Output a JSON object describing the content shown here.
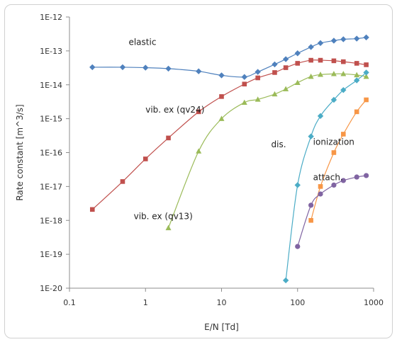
{
  "chart_data": {
    "type": "scatter",
    "xscale": "log",
    "yscale": "log",
    "xlabel": "E/N [Td]",
    "ylabel": "Rate constant [m^3/s]",
    "xlim": [
      0.1,
      1000
    ],
    "ylim": [
      1e-20,
      1e-12
    ],
    "xticks": [
      "0.1",
      "1",
      "10",
      "100",
      "1000"
    ],
    "yticks": [
      "1E-20",
      "1E-19",
      "1E-18",
      "1E-17",
      "1E-16",
      "1E-15",
      "1E-14",
      "1E-13",
      "1E-12"
    ],
    "grid": false,
    "legend": "none",
    "series": [
      {
        "name": "elastic",
        "color": "#4f81bd",
        "marker": "diamond",
        "x": [
          0.2,
          0.5,
          1,
          2,
          5,
          10,
          20,
          30,
          50,
          70,
          100,
          150,
          200,
          300,
          400,
          600,
          800
        ],
        "y": [
          3.3e-14,
          3.3e-14,
          3.2e-14,
          3e-14,
          2.5e-14,
          1.9e-14,
          1.7e-14,
          2.4e-14,
          4e-14,
          5.7e-14,
          8.5e-14,
          1.3e-13,
          1.7e-13,
          2e-13,
          2.2e-13,
          2.3e-13,
          2.5e-13
        ]
      },
      {
        "name": "vib. ex (qv24)",
        "color": "#c0504d",
        "marker": "square",
        "x": [
          0.2,
          0.5,
          1,
          2,
          5,
          10,
          20,
          30,
          50,
          70,
          100,
          150,
          200,
          300,
          400,
          600,
          800
        ],
        "y": [
          2.1e-18,
          1.4e-17,
          6.5e-17,
          2.7e-16,
          1.6e-15,
          4.5e-15,
          1.05e-14,
          1.6e-14,
          2.3e-14,
          3.2e-14,
          4.3e-14,
          5.3e-14,
          5.3e-14,
          5.1e-14,
          4.8e-14,
          4.3e-14,
          3.9e-14
        ]
      },
      {
        "name": "vib. ex (qv13)",
        "color": "#9bbb59",
        "marker": "triangle",
        "x": [
          2,
          5,
          10,
          20,
          30,
          50,
          70,
          100,
          150,
          200,
          300,
          400,
          600,
          800
        ],
        "y": [
          6e-19,
          1.1e-16,
          1e-15,
          3e-15,
          3.7e-15,
          5.3e-15,
          7.5e-15,
          1.15e-14,
          1.75e-14,
          2e-14,
          2.1e-14,
          2.1e-14,
          1.95e-14,
          1.75e-14
        ]
      },
      {
        "name": "dis.",
        "color": "#4bacc6",
        "marker": "diamond",
        "x": [
          70,
          100,
          150,
          200,
          300,
          400,
          600,
          800
        ],
        "y": [
          1.7e-20,
          1.1e-17,
          3e-16,
          1.2e-15,
          3.6e-15,
          7e-15,
          1.35e-14,
          2.3e-14
        ]
      },
      {
        "name": "ionization",
        "color": "#f79646",
        "marker": "square",
        "x": [
          150,
          200,
          300,
          400,
          600,
          800
        ],
        "y": [
          1e-18,
          1e-17,
          1e-16,
          3.5e-16,
          1.6e-15,
          3.6e-15
        ]
      },
      {
        "name": "attach.",
        "color": "#8064a2",
        "marker": "circle",
        "x": [
          100,
          150,
          200,
          300,
          400,
          600,
          800
        ],
        "y": [
          1.7e-19,
          2.8e-18,
          6e-18,
          1.1e-17,
          1.5e-17,
          1.9e-17,
          2.1e-17
        ]
      }
    ]
  }
}
